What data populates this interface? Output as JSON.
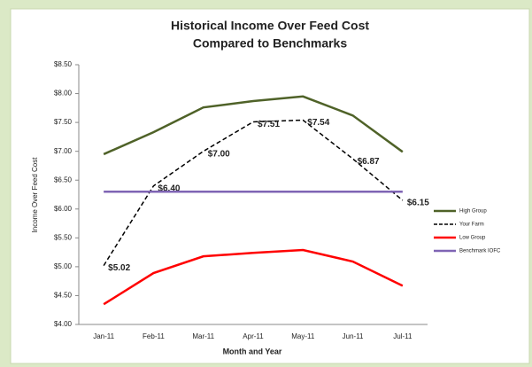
{
  "chart_data": {
    "type": "line",
    "title": "Historical Income Over Feed Cost",
    "subtitle": "Compared to Benchmarks",
    "x_label": "Month and Year",
    "y_label": "Income Over Feed Cost",
    "categories": [
      "Jan-11",
      "Feb-11",
      "Mar-11",
      "Apr-11",
      "May-11",
      "Jun-11",
      "Jul-11"
    ],
    "series": [
      {
        "name": "High Group",
        "color": "#4f6228",
        "values": [
          6.95,
          7.33,
          7.76,
          7.87,
          7.95,
          7.62,
          6.99
        ]
      },
      {
        "name": "Your Farm",
        "color": "#000000",
        "dashed": true,
        "values": [
          5.02,
          6.4,
          7.0,
          7.51,
          7.54,
          6.87,
          6.15
        ],
        "value_labels": [
          "$5.02",
          "$6.40",
          "$7.00",
          "$7.51",
          "$7.54",
          "$6.87",
          "$6.15"
        ]
      },
      {
        "name": "Low Group",
        "color": "#ff0000",
        "values": [
          4.35,
          4.89,
          5.18,
          5.24,
          5.29,
          5.09,
          4.67
        ]
      },
      {
        "name": "Benchmark IOFC",
        "color": "#7f64b4",
        "values": [
          6.3,
          6.3,
          6.3,
          6.3,
          6.3,
          6.3,
          6.3
        ]
      }
    ],
    "ylim": [
      4.0,
      8.5
    ],
    "yticks": [
      {
        "value": 4.0,
        "label": "$4.00"
      },
      {
        "value": 4.5,
        "label": "$4.50"
      },
      {
        "value": 5.0,
        "label": "$5.00"
      },
      {
        "value": 5.5,
        "label": "$5.50"
      },
      {
        "value": 6.0,
        "label": "$6.00"
      },
      {
        "value": 6.5,
        "label": "$6.50"
      },
      {
        "value": 7.0,
        "label": "$7.00"
      },
      {
        "value": 7.5,
        "label": "$7.50"
      },
      {
        "value": 8.0,
        "label": "$8.00"
      },
      {
        "value": 8.5,
        "label": "$8.50"
      }
    ],
    "grid": false,
    "legend": "right"
  }
}
